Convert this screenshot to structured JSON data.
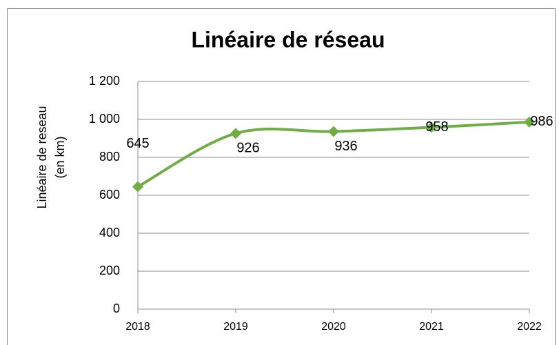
{
  "chart_data": {
    "type": "line",
    "title": "Linéaire de réseau",
    "ylabel": [
      "Linéaire de reseau",
      "(en km)"
    ],
    "x": [
      2018,
      2019,
      2020,
      2021,
      2022
    ],
    "xlim": [
      2018,
      2022
    ],
    "xticks": [
      2018,
      2019,
      2020,
      2021,
      2022
    ],
    "series": [
      {
        "color": "#70ad47",
        "values": [
          645,
          926,
          936,
          958,
          986
        ]
      }
    ],
    "ylim": [
      0,
      1200
    ],
    "yticks": [
      0,
      200,
      400,
      600,
      800,
      {
        "value": 1000,
        "label": "1 000"
      },
      {
        "value": 1200,
        "label": "1 200"
      }
    ],
    "grid": true
  }
}
